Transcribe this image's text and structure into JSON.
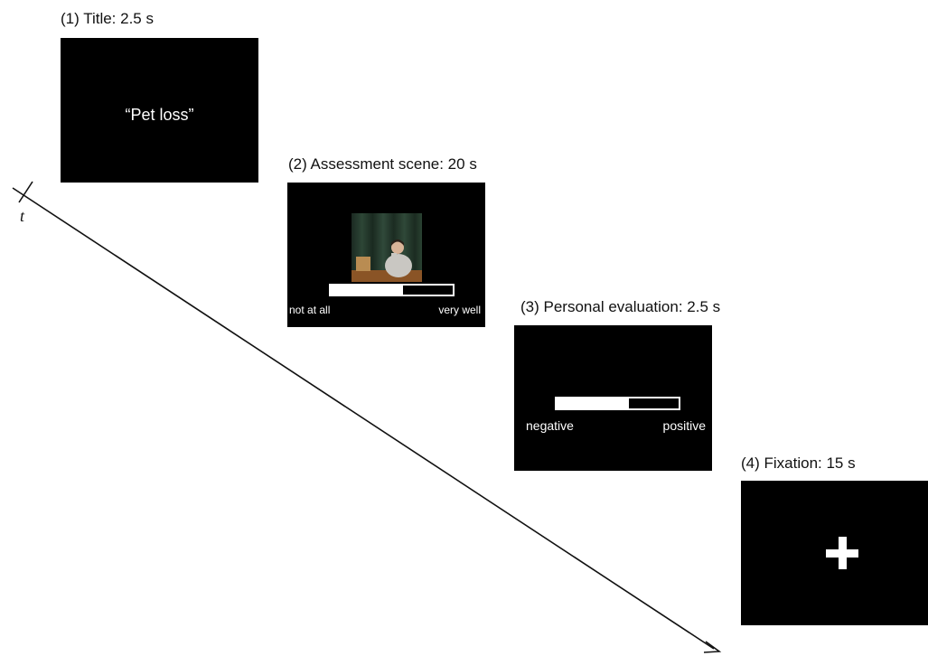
{
  "stages": [
    {
      "caption": "(1) Title: 2.5 s",
      "screen_text": "“Pet loss”"
    },
    {
      "caption": "(2) Assessment scene: 20 s",
      "scale": {
        "left_label": "not at all",
        "right_label": "very well",
        "fill_fraction": 0.59
      }
    },
    {
      "caption": "(3) Personal evaluation: 2.5 s",
      "scale": {
        "left_label": "negative",
        "right_label": "positive",
        "fill_fraction": 0.59
      }
    },
    {
      "caption": "(4) Fixation: 15 s",
      "symbol": "fixation-cross"
    }
  ],
  "timeline": {
    "label": "t"
  },
  "colors": {
    "screen_background": "#000000",
    "screen_foreground": "#ffffff",
    "page_background": "#ffffff",
    "line": "#111111"
  }
}
